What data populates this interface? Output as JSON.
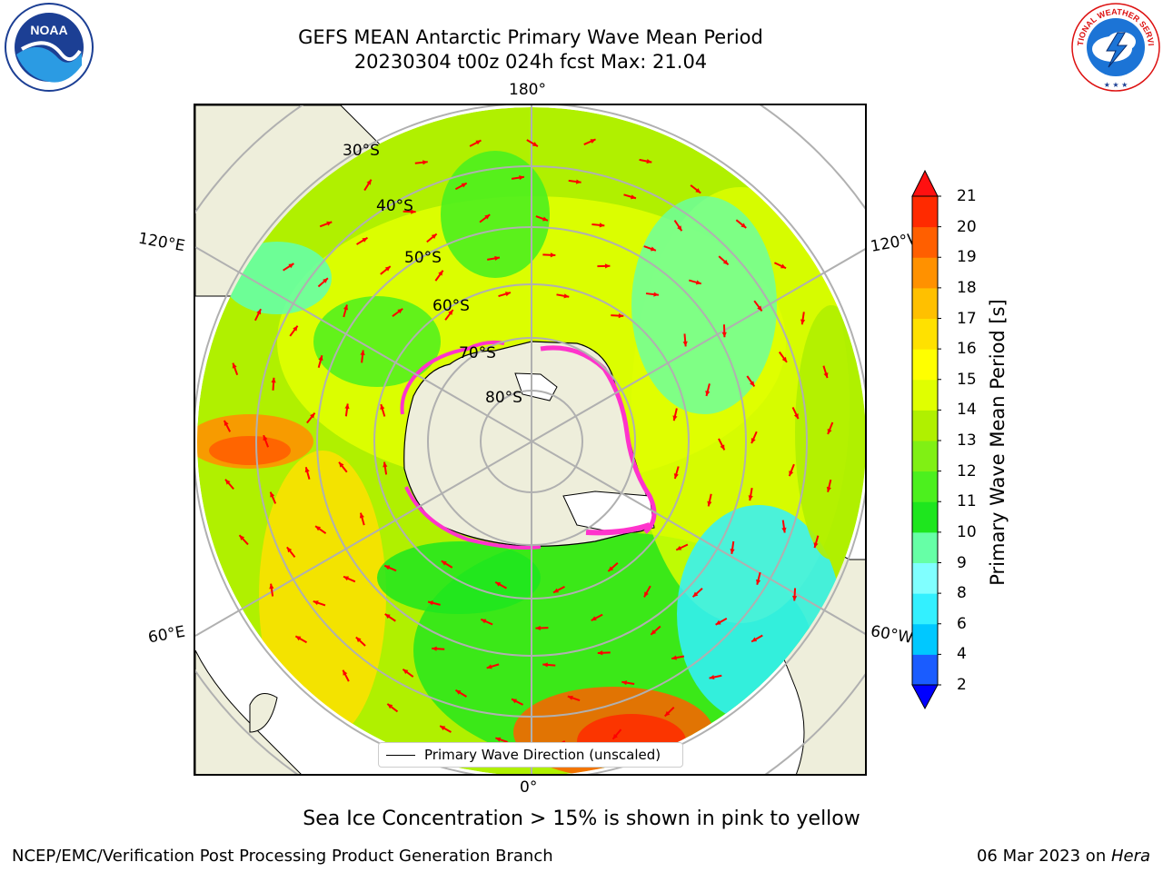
{
  "title_line1": "GEFS MEAN Antarctic Primary Wave Mean Period",
  "title_line2": "20230304 t00z 024h fcst   Max: 21.04",
  "logos": {
    "left": "noaa-logo",
    "right": "nws-logo",
    "left_text": "NOAA",
    "right_text": "NATIONAL WEATHER SERVICE"
  },
  "map": {
    "projection": "south-polar-stereographic",
    "longitude_labels": {
      "top": "180°",
      "bottom": "0°",
      "left_upper": "120°E",
      "left_lower": "60°E",
      "right_upper": "120°W",
      "right_lower": "60°W"
    },
    "latitude_labels": [
      "30°S",
      "40°S",
      "50°S",
      "60°S",
      "70°S",
      "80°S"
    ],
    "legend": "Primary Wave Direction (unscaled)",
    "colors": {
      "land": "#eeeedb",
      "grid": "#b0b0b0",
      "arrow": "#ff0000",
      "ice": "#ff33cc"
    }
  },
  "colorbar": {
    "label": "Primary Wave Mean Period [s]",
    "ticks": [
      "2",
      "4",
      "6",
      "8",
      "9",
      "10",
      "11",
      "12",
      "13",
      "14",
      "15",
      "16",
      "17",
      "18",
      "19",
      "20",
      "21"
    ],
    "colors": [
      "#1a5cff",
      "#00c8ff",
      "#33f0ff",
      "#80ffff",
      "#66ffa6",
      "#1ee61e",
      "#4cf01e",
      "#80f014",
      "#b0f000",
      "#e0ff00",
      "#ffff00",
      "#ffe100",
      "#ffc000",
      "#ff9100",
      "#ff5f00",
      "#ff2a00"
    ],
    "extend_low_color": "#0000ff",
    "extend_high_color": "#ff1010"
  },
  "ice_note": "Sea Ice Concentration > 15% is shown in pink to yellow",
  "footer_left": "NCEP/EMC/Verification Post Processing Product Generation Branch",
  "footer_date": "06 Mar 2023 on ",
  "footer_host": "Hera"
}
